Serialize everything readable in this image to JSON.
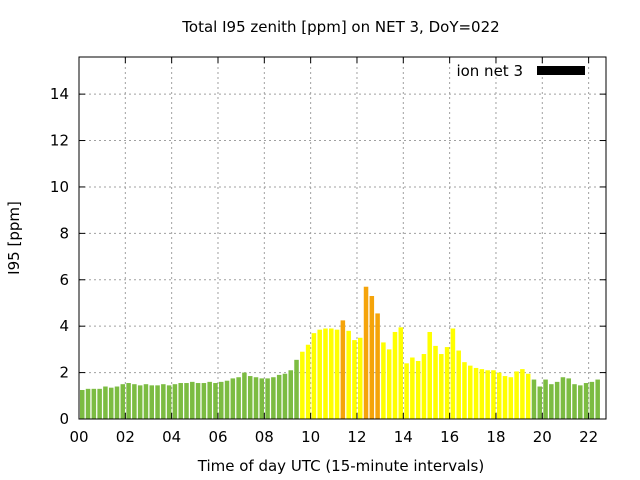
{
  "chart_data": {
    "type": "bar",
    "title": "Total I95 zenith [ppm] on NET 3, DoY=022",
    "xlabel": "Time of day UTC (15-minute intervals)",
    "ylabel": "I95 [ppm]",
    "xlim": [
      0,
      22.75
    ],
    "ylim": [
      0,
      15.6
    ],
    "xticks": [
      "00",
      "02",
      "04",
      "06",
      "08",
      "10",
      "12",
      "14",
      "16",
      "18",
      "20",
      "22"
    ],
    "yticks": [
      "0",
      "2",
      "4",
      "6",
      "8",
      "10",
      "12",
      "14"
    ],
    "grid": true,
    "legend": {
      "label": "ion net 3",
      "placement": "top-right"
    },
    "colors": {
      "low": "#7cbc42",
      "moderate": "#ffff00",
      "high": "#f5a40a",
      "legend": "#000000"
    },
    "bar_interval_hours": 0.25,
    "series": [
      {
        "name": "ion net 3",
        "values": [
          1.25,
          1.3,
          1.3,
          1.3,
          1.4,
          1.35,
          1.4,
          1.5,
          1.55,
          1.5,
          1.45,
          1.5,
          1.45,
          1.45,
          1.5,
          1.45,
          1.5,
          1.55,
          1.55,
          1.6,
          1.55,
          1.55,
          1.6,
          1.55,
          1.6,
          1.65,
          1.75,
          1.8,
          2.0,
          1.85,
          1.8,
          1.75,
          1.75,
          1.8,
          1.9,
          1.95,
          2.1,
          2.55,
          2.9,
          3.2,
          3.7,
          3.85,
          3.9,
          3.9,
          3.85,
          4.25,
          3.8,
          3.4,
          3.5,
          5.7,
          5.3,
          4.55,
          3.3,
          3.0,
          3.75,
          3.95,
          2.4,
          2.65,
          2.5,
          2.8,
          3.75,
          3.15,
          2.8,
          3.1,
          3.9,
          2.95,
          2.45,
          2.3,
          2.2,
          2.15,
          2.1,
          2.1,
          2.0,
          1.85,
          1.8,
          2.05,
          2.15,
          1.95,
          1.7,
          1.4,
          1.7,
          1.5,
          1.6,
          1.8,
          1.75,
          1.5,
          1.45,
          1.55,
          1.6,
          1.7
        ]
      }
    ]
  }
}
